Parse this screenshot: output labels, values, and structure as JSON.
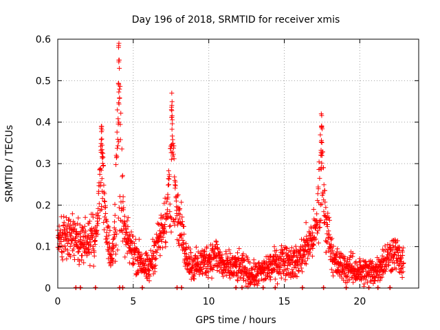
{
  "chart_data": {
    "type": "scatter",
    "title": "Day 196 of 2018, SRMTID for receiver xmis",
    "xlabel": "GPS time / hours",
    "ylabel": "SRMTID / TECUs",
    "xlim": [
      0,
      23.9
    ],
    "ylim": [
      0,
      0.6
    ],
    "xticks": [
      0,
      5,
      10,
      15,
      20
    ],
    "yticks": [
      0,
      0.1,
      0.2,
      0.3,
      0.4,
      0.5,
      0.6
    ],
    "xtick_labels": [
      "0",
      "5",
      "10",
      "15",
      "20"
    ],
    "ytick_labels": [
      "0",
      "0.1",
      "0.2",
      "0.3",
      "0.4",
      "0.5",
      "0.6"
    ],
    "grid": true,
    "marker": "+",
    "color": "#ff0000",
    "series": [
      {
        "name": "SRMTID",
        "baseline": [
          [
            0,
            0.12
          ],
          [
            1,
            0.12
          ],
          [
            2,
            0.11
          ],
          [
            2.6,
            0.13
          ],
          [
            2.9,
            0.25
          ],
          [
            3.2,
            0.15
          ],
          [
            3.6,
            0.07
          ],
          [
            4.1,
            0.18
          ],
          [
            4.5,
            0.12
          ],
          [
            5.0,
            0.09
          ],
          [
            5.6,
            0.06
          ],
          [
            6.0,
            0.04
          ],
          [
            6.6,
            0.11
          ],
          [
            7.0,
            0.14
          ],
          [
            7.5,
            0.18
          ],
          [
            8.0,
            0.17
          ],
          [
            8.5,
            0.08
          ],
          [
            9.0,
            0.05
          ],
          [
            10.0,
            0.07
          ],
          [
            10.5,
            0.08
          ],
          [
            11.0,
            0.05
          ],
          [
            12.0,
            0.05
          ],
          [
            13.0,
            0.03
          ],
          [
            14.0,
            0.05
          ],
          [
            15.0,
            0.07
          ],
          [
            15.8,
            0.06
          ],
          [
            16.5,
            0.1
          ],
          [
            17.0,
            0.13
          ],
          [
            17.5,
            0.2
          ],
          [
            17.9,
            0.14
          ],
          [
            18.3,
            0.06
          ],
          [
            19.0,
            0.05
          ],
          [
            20.0,
            0.04
          ],
          [
            21.0,
            0.04
          ],
          [
            21.7,
            0.07
          ],
          [
            22.3,
            0.09
          ],
          [
            22.9,
            0.05
          ]
        ],
        "peaks": [
          {
            "x": 2.9,
            "y": 0.39
          },
          {
            "x": 4.05,
            "y": 0.59
          },
          {
            "x": 7.55,
            "y": 0.47
          },
          {
            "x": 17.45,
            "y": 0.42
          }
        ],
        "zero_marks": [
          1.2,
          1.5,
          2.5,
          4.1,
          4.3,
          5.6,
          7.9,
          8.2,
          11.8,
          12.2,
          13.6,
          14.4,
          16.2,
          17.6,
          19.1,
          20.6,
          21.2,
          22.0
        ]
      }
    ]
  }
}
